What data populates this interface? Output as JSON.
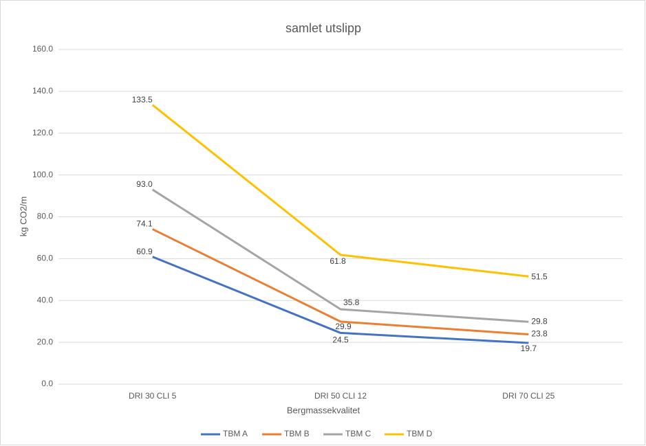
{
  "chart_data": {
    "type": "line",
    "title": "samlet utslipp",
    "x_label": "Bergmassekvalitet",
    "y_label": "kg CO2/m",
    "categories": [
      "DRI 30 CLI 5",
      "DRI 50 CLI 12",
      "DRI 70 CLI 25"
    ],
    "series": [
      {
        "name": "TBM A",
        "color": "#4472c4",
        "values": [
          60.9,
          24.5,
          19.7
        ],
        "value_labels": [
          "60.9",
          "24.5",
          "19.7"
        ]
      },
      {
        "name": "TBM B",
        "color": "#ed7d31",
        "values": [
          74.1,
          29.9,
          23.8
        ],
        "value_labels": [
          "74.1",
          "29.9",
          "23.8"
        ]
      },
      {
        "name": "TBM C",
        "color": "#a5a5a5",
        "values": [
          93.0,
          35.8,
          29.8
        ],
        "value_labels": [
          "93.0",
          "35.8",
          "29.8"
        ]
      },
      {
        "name": "TBM D",
        "color": "#ffc000",
        "values": [
          133.5,
          61.8,
          51.5
        ],
        "value_labels": [
          "133.5",
          "61.8",
          "51.5"
        ]
      }
    ],
    "ylim": [
      0,
      160
    ],
    "yticks": [
      {
        "value": 0,
        "label": "0.0"
      },
      {
        "value": 20,
        "label": "20.0"
      },
      {
        "value": 40,
        "label": "40.0"
      },
      {
        "value": 60,
        "label": "60.0"
      },
      {
        "value": 80,
        "label": "80.0"
      },
      {
        "value": 100,
        "label": "100.0"
      },
      {
        "value": 120,
        "label": "120.0"
      },
      {
        "value": 140,
        "label": "140.0"
      },
      {
        "value": 160,
        "label": "160.0"
      }
    ],
    "grid": true,
    "legend": "bottom"
  }
}
